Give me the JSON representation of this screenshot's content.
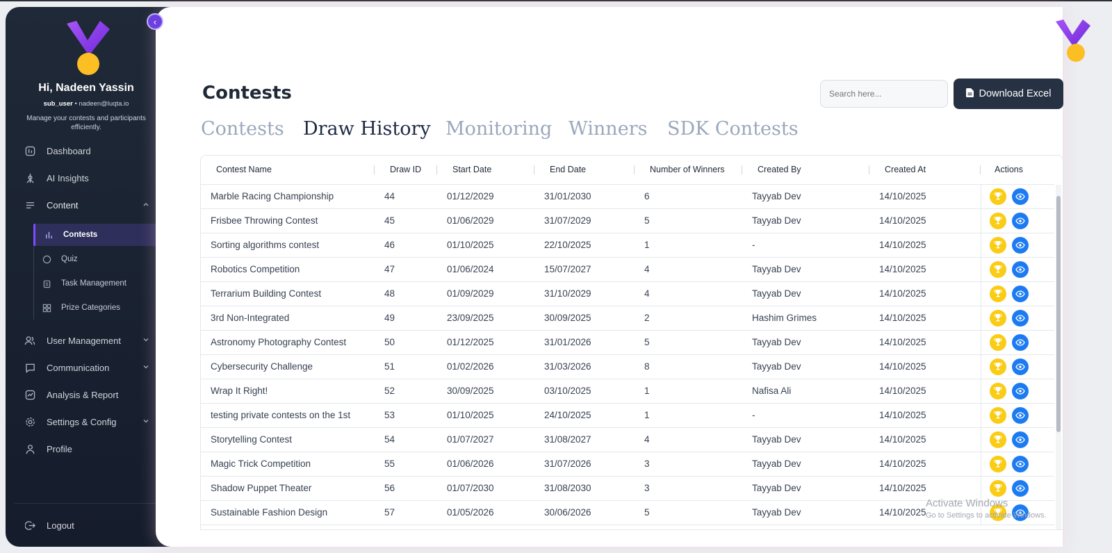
{
  "sidebar": {
    "greeting": "Hi, Nadeen Yassin",
    "role": "sub_user",
    "email": "nadeen@luqta.io",
    "tagline": "Manage your contests and participants efficiently.",
    "items": [
      {
        "label": "Dashboard",
        "icon": "dashboard-icon"
      },
      {
        "label": "AI Insights",
        "icon": "ai-icon"
      },
      {
        "label": "Content",
        "icon": "content-icon",
        "expanded": true
      },
      {
        "label": "User Management",
        "icon": "users-icon"
      },
      {
        "label": "Communication",
        "icon": "chat-icon"
      },
      {
        "label": "Analysis & Report",
        "icon": "report-icon"
      },
      {
        "label": "Settings & Config",
        "icon": "gear-icon"
      },
      {
        "label": "Profile",
        "icon": "profile-icon"
      }
    ],
    "subitems": [
      {
        "label": "Contests",
        "icon": "bar-chart-icon",
        "active": true
      },
      {
        "label": "Quiz",
        "icon": "chat-bubble-icon"
      },
      {
        "label": "Task Management",
        "icon": "clipboard-icon"
      },
      {
        "label": "Prize Categories",
        "icon": "grid-icon"
      }
    ],
    "logout": "Logout",
    "collapse_glyph": "‹"
  },
  "header": {
    "title": "Contests",
    "search_placeholder": "Search here...",
    "download_label": "Download Excel"
  },
  "tabs": [
    {
      "label": "Contests",
      "active": false
    },
    {
      "label": "Draw History",
      "active": true
    },
    {
      "label": "Monitoring",
      "active": false
    },
    {
      "label": "Winners",
      "active": false
    },
    {
      "label": "SDK Contests",
      "active": false
    }
  ],
  "table": {
    "columns": [
      "Contest Name",
      "Draw ID",
      "Start Date",
      "End Date",
      "Number of Winners",
      "Created By",
      "Created At",
      "Actions"
    ],
    "rows": [
      [
        "Marble Racing Championship",
        "44",
        "01/12/2029",
        "31/01/2030",
        "6",
        "Tayyab Dev",
        "14/10/2025"
      ],
      [
        "Frisbee Throwing Contest",
        "45",
        "01/06/2029",
        "31/07/2029",
        "5",
        "Tayyab Dev",
        "14/10/2025"
      ],
      [
        "Sorting algorithms contest",
        "46",
        "01/10/2025",
        "22/10/2025",
        "1",
        "-",
        "14/10/2025"
      ],
      [
        "Robotics Competition",
        "47",
        "01/06/2024",
        "15/07/2027",
        "4",
        "Tayyab Dev",
        "14/10/2025"
      ],
      [
        "Terrarium Building Contest",
        "48",
        "01/09/2029",
        "31/10/2029",
        "4",
        "Tayyab Dev",
        "14/10/2025"
      ],
      [
        "3rd Non-Integrated",
        "49",
        "23/09/2025",
        "30/09/2025",
        "2",
        "Hashim Grimes",
        "14/10/2025"
      ],
      [
        "Astronomy Photography Contest",
        "50",
        "01/12/2025",
        "31/01/2026",
        "5",
        "Tayyab Dev",
        "14/10/2025"
      ],
      [
        "Cybersecurity Challenge",
        "51",
        "01/02/2026",
        "31/03/2026",
        "8",
        "Tayyab Dev",
        "14/10/2025"
      ],
      [
        "Wrap It Right!",
        "52",
        "30/09/2025",
        "03/10/2025",
        "1",
        "Nafisa Ali",
        "14/10/2025"
      ],
      [
        "testing private contests on the 1st",
        "53",
        "01/10/2025",
        "24/10/2025",
        "1",
        "-",
        "14/10/2025"
      ],
      [
        "Storytelling Contest",
        "54",
        "01/07/2027",
        "31/08/2027",
        "4",
        "Tayyab Dev",
        "14/10/2025"
      ],
      [
        "Magic Trick Competition",
        "55",
        "01/06/2026",
        "31/07/2026",
        "3",
        "Tayyab Dev",
        "14/10/2025"
      ],
      [
        "Shadow Puppet Theater",
        "56",
        "01/07/2030",
        "31/08/2030",
        "3",
        "Tayyab Dev",
        "14/10/2025"
      ],
      [
        "Sustainable Fashion Design",
        "57",
        "01/05/2026",
        "30/06/2026",
        "5",
        "Tayyab Dev",
        "14/10/2025"
      ]
    ]
  },
  "watermark": {
    "line1": "Activate Windows",
    "line2": "Go to Settings to activate Windows."
  },
  "colors": {
    "accent_purple": "#7c4dff",
    "brand_yellow": "#fbbf24",
    "trophy_yellow": "#facc15",
    "view_blue": "#1d7bf2",
    "dark_button": "#263244"
  }
}
